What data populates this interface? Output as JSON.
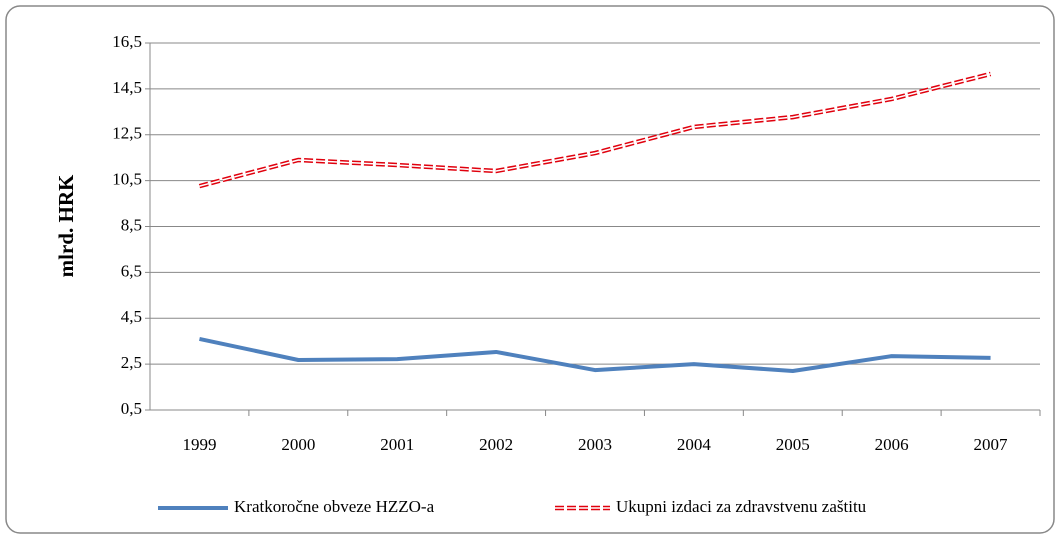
{
  "chart_data": {
    "type": "line",
    "y_label": "mlrd. HRK",
    "categories": [
      "1999",
      "2000",
      "2001",
      "2002",
      "2003",
      "2004",
      "2005",
      "2006",
      "2007"
    ],
    "series": [
      {
        "name": "Kratkoročne obveze HZZO-a",
        "color": "#4f81bd",
        "values": [
          3.6,
          2.68,
          2.72,
          3.03,
          2.24,
          2.5,
          2.2,
          2.85,
          2.77
        ]
      },
      {
        "name": "Ukupni izdaci za zdravstvenu zaštitu",
        "color": "#e0000d",
        "values": [
          10.26,
          11.4,
          11.18,
          10.92,
          11.7,
          12.84,
          13.27,
          14.06,
          15.15
        ]
      }
    ],
    "ylim": [
      0.5,
      16.5
    ],
    "yticks": [
      {
        "value": 0.5,
        "label": "0,5"
      },
      {
        "value": 2.5,
        "label": "2,5"
      },
      {
        "value": 4.5,
        "label": "4,5"
      },
      {
        "value": 6.5,
        "label": "6,5"
      },
      {
        "value": 8.5,
        "label": "8,5"
      },
      {
        "value": 10.5,
        "label": "10,5"
      },
      {
        "value": 12.5,
        "label": "12,5"
      },
      {
        "value": 14.5,
        "label": "14,5"
      },
      {
        "value": 16.5,
        "label": "16,5"
      }
    ],
    "grid": true,
    "legend": "bottom"
  }
}
